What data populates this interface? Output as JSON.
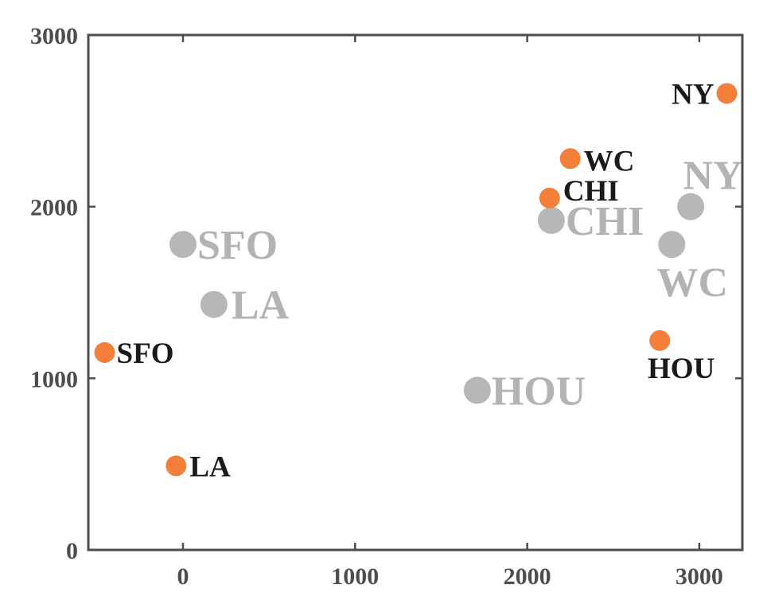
{
  "chart_data": {
    "type": "scatter",
    "xlim": [
      -550,
      3250
    ],
    "ylim": [
      0,
      3000
    ],
    "xticks": [
      0,
      1000,
      2000,
      3000
    ],
    "yticks": [
      0,
      1000,
      2000,
      3000
    ],
    "grid": false,
    "series": [
      {
        "color": "#b7b7b7",
        "points": [
          {
            "label": "SFO",
            "x": 0,
            "y": 1780
          },
          {
            "label": "LA",
            "x": 180,
            "y": 1430
          },
          {
            "label": "HOU",
            "x": 1710,
            "y": 930
          },
          {
            "label": "CHI",
            "x": 2140,
            "y": 1920
          },
          {
            "label": "NY",
            "x": 2950,
            "y": 2000
          },
          {
            "label": "WC",
            "x": 2840,
            "y": 1780
          }
        ]
      },
      {
        "color": "#f47f3a",
        "points": [
          {
            "label": "SFO",
            "x": -455,
            "y": 1150
          },
          {
            "label": "LA",
            "x": -40,
            "y": 490
          },
          {
            "label": "HOU",
            "x": 2770,
            "y": 1220
          },
          {
            "label": "CHI",
            "x": 2130,
            "y": 2050
          },
          {
            "label": "NY",
            "x": 3160,
            "y": 2660
          },
          {
            "label": "WC",
            "x": 2250,
            "y": 2280
          }
        ]
      }
    ]
  }
}
